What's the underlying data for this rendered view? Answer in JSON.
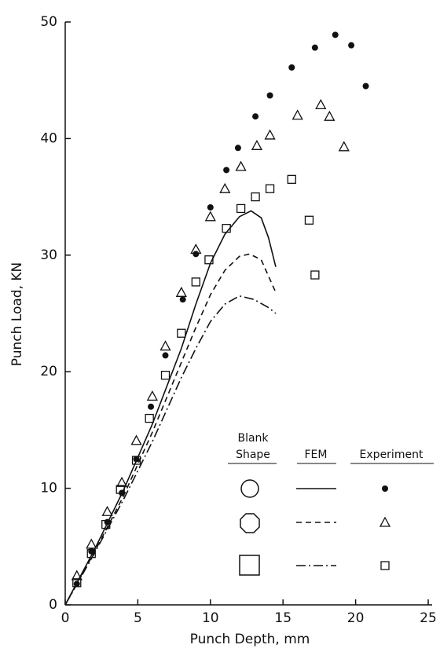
{
  "chart_data": {
    "type": "line",
    "x_label": "Punch Depth, mm",
    "y_label": "Punch Load, KN",
    "xlim": [
      0,
      25
    ],
    "ylim": [
      0,
      50
    ],
    "xticks": [
      0,
      5,
      10,
      15,
      20,
      25
    ],
    "yticks": [
      0,
      10,
      20,
      30,
      40,
      50
    ],
    "color": "#111111",
    "series": [
      {
        "style": "solid",
        "x": [
          0,
          2,
          4,
          6,
          8,
          9,
          10,
          11,
          12,
          12.8,
          13.5,
          14,
          14.5
        ],
        "values": [
          0,
          4.7,
          9.8,
          15.5,
          22,
          25.8,
          29.3,
          31.8,
          33.3,
          33.8,
          33.2,
          31.5,
          29
        ]
      },
      {
        "style": "dashed",
        "x": [
          0,
          2,
          4,
          6,
          8,
          9,
          10,
          11,
          12,
          12.7,
          13.5,
          14.5
        ],
        "values": [
          0,
          4.5,
          9.3,
          14.8,
          20.8,
          23.8,
          26.6,
          28.7,
          29.9,
          30.1,
          29.6,
          26.8
        ]
      },
      {
        "style": "dashdot",
        "x": [
          0,
          2,
          4,
          6,
          8,
          9,
          10,
          11,
          12,
          13,
          14,
          14.5
        ],
        "values": [
          0,
          4.4,
          9,
          14,
          19.5,
          22,
          24.3,
          25.8,
          26.5,
          26.2,
          25.5,
          25
        ]
      },
      {
        "style": "dot",
        "x": [
          0.8,
          1.8,
          2.9,
          3.9,
          4.9,
          5.9,
          6.9,
          8.1,
          9,
          10,
          11.1,
          11.9,
          13.1,
          14.1,
          15.6,
          17.2,
          18.6,
          19.7,
          20.7
        ],
        "values": [
          1.8,
          4.6,
          7.1,
          9.6,
          12.5,
          17,
          21.4,
          26.2,
          30.1,
          34.1,
          37.3,
          39.2,
          41.9,
          43.7,
          46.1,
          47.8,
          48.9,
          48,
          44.5
        ]
      },
      {
        "style": "triangle",
        "x": [
          0.8,
          1.8,
          2.9,
          3.9,
          4.9,
          6,
          6.9,
          8,
          9,
          10,
          11,
          12.1,
          13.2,
          14.1,
          16,
          17.6,
          18.2,
          19.2
        ],
        "values": [
          2.5,
          5.2,
          8,
          10.5,
          14.1,
          17.9,
          22.2,
          26.8,
          30.5,
          33.3,
          35.7,
          37.6,
          39.4,
          40.3,
          42,
          42.9,
          41.9,
          39.3
        ]
      },
      {
        "style": "square",
        "x": [
          0.8,
          1.8,
          2.8,
          3.8,
          4.9,
          5.8,
          6.9,
          8,
          9,
          9.9,
          11.1,
          12.1,
          13.1,
          14.1,
          15.6,
          16.8,
          17.2
        ],
        "values": [
          1.9,
          4.4,
          6.9,
          9.9,
          12.4,
          16,
          19.7,
          23.3,
          27.7,
          29.6,
          32.3,
          34,
          35,
          35.7,
          36.5,
          33,
          28.3
        ]
      }
    ],
    "legend_header": {
      "shape": [
        "Blank",
        "Shape"
      ],
      "fem": "FEM",
      "experiment": "Experiment"
    }
  }
}
